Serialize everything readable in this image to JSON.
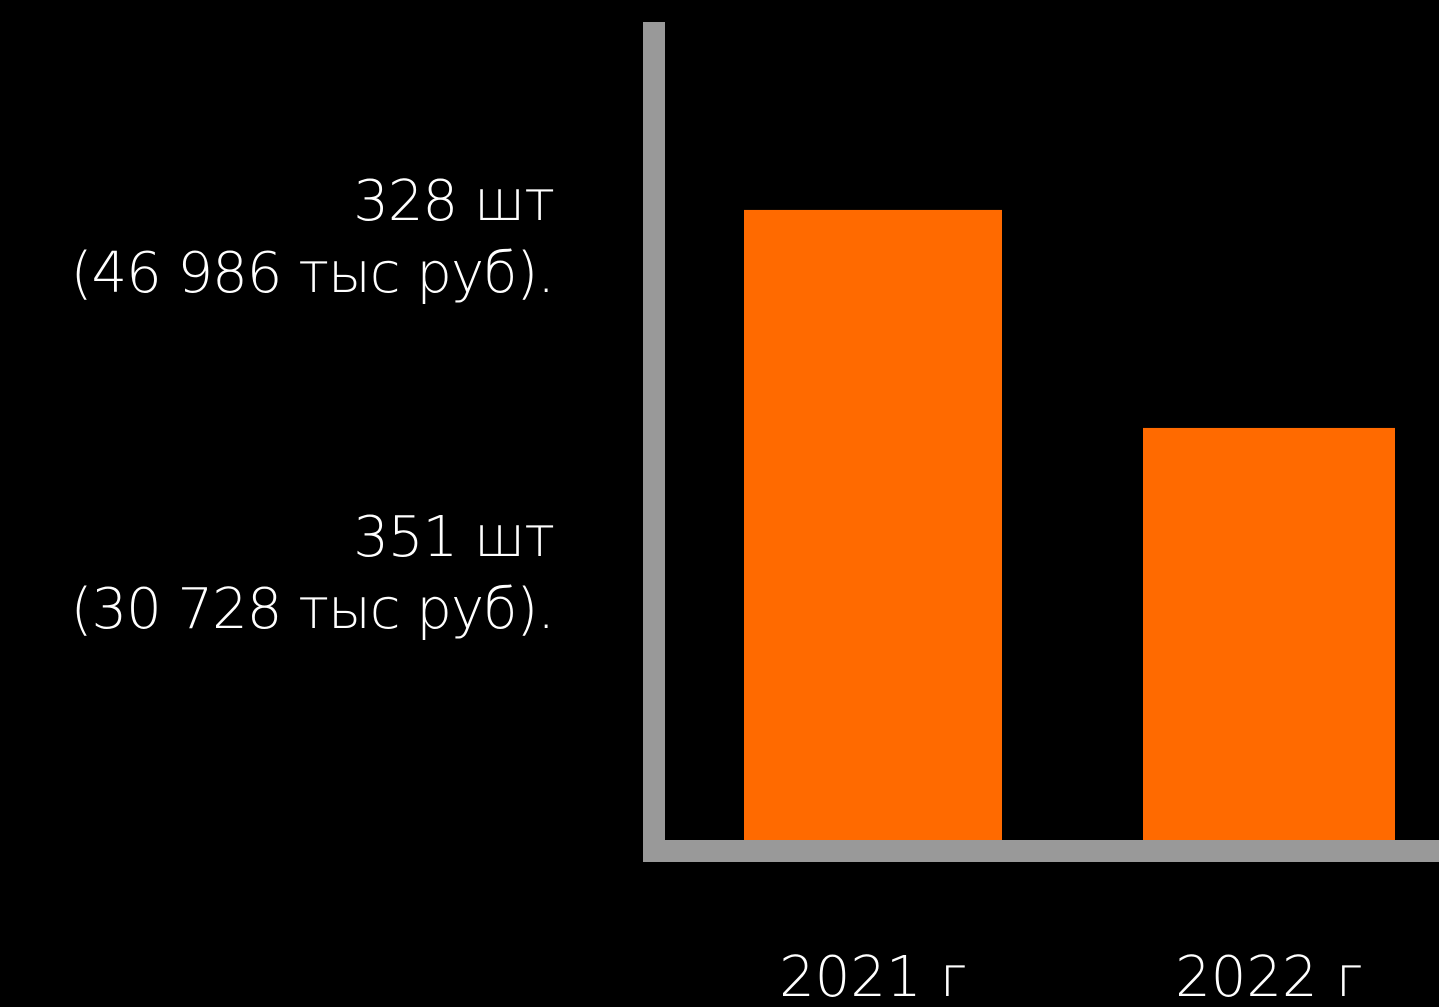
{
  "chart_data": {
    "type": "bar",
    "categories": [
      "2021 г",
      "2022 г"
    ],
    "values": [
      46986,
      30728
    ],
    "value_labels": [
      {
        "units": "328 шт",
        "amount": "(46 986 тыс руб)."
      },
      {
        "units": "351 шт",
        "amount": "(30 728 тыс руб)."
      }
    ],
    "ylim": [
      0,
      61000
    ],
    "grid": false,
    "colors": {
      "bar": "#ff6a00",
      "axis": "#999999",
      "background": "#000000",
      "text": "#ffffff"
    }
  }
}
